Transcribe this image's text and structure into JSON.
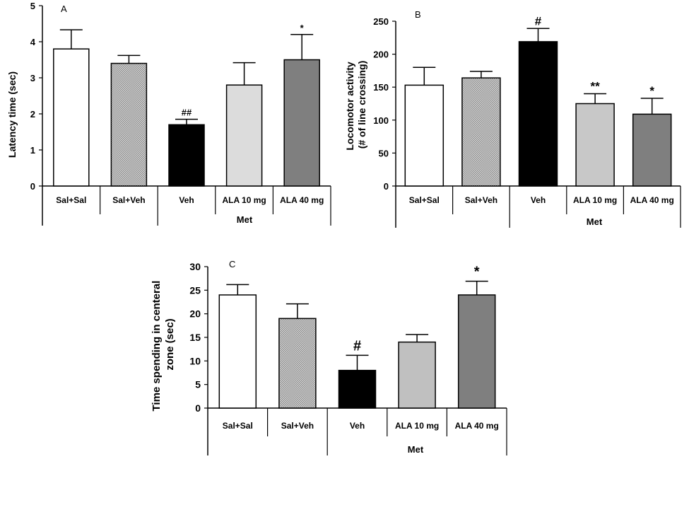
{
  "chart_data": [
    {
      "type": "bar",
      "panel_label": "A",
      "ylabel": "Latency time (sec)",
      "ylabel_lines": [
        "Latency time (sec)"
      ],
      "ylim": [
        0,
        5
      ],
      "yticks": [
        0,
        1,
        2,
        3,
        4,
        5
      ],
      "categories": [
        "Sal+Sal",
        "Sal+Veh",
        "Veh",
        "ALA 10 mg",
        "ALA 40 mg"
      ],
      "group_label": "Met",
      "values": [
        3.8,
        3.4,
        1.7,
        2.8,
        3.5
      ],
      "errors": [
        0.53,
        0.22,
        0.15,
        0.62,
        0.7
      ],
      "significance": [
        "",
        "",
        "##",
        "",
        "*"
      ],
      "bar_colors": [
        "#ffffff",
        "#a9a9a9",
        "#000000",
        "#dcdcdc",
        "#7f7f7f"
      ],
      "grid": false
    },
    {
      "type": "bar",
      "panel_label": "B",
      "ylabel": "Locomotor activity (# of line crossing)",
      "ylabel_lines": [
        "Locomotor activity",
        "(# of line crossing)"
      ],
      "ylim": [
        0,
        250
      ],
      "yticks": [
        0,
        50,
        100,
        150,
        200,
        250
      ],
      "categories": [
        "Sal+Sal",
        "Sal+Veh",
        "Veh",
        "ALA 10 mg",
        "ALA 40 mg"
      ],
      "group_label": "Met",
      "values": [
        153,
        164,
        219,
        125,
        109
      ],
      "errors": [
        27,
        10,
        20,
        15,
        24
      ],
      "significance": [
        "",
        "",
        "#",
        "**",
        "*"
      ],
      "bar_colors": [
        "#ffffff",
        "#a9a9a9",
        "#000000",
        "#c8c8c8",
        "#7f7f7f"
      ],
      "grid": false
    },
    {
      "type": "bar",
      "panel_label": "C",
      "ylabel": "Time spending in centeral zone (sec)",
      "ylabel_lines": [
        "Time spending in centeral",
        "zone (sec)"
      ],
      "ylim": [
        0,
        30
      ],
      "yticks": [
        0,
        5,
        10,
        15,
        20,
        25,
        30
      ],
      "categories": [
        "Sal+Sal",
        "Sal+Veh",
        "Veh",
        "ALA 10 mg",
        "ALA 40 mg"
      ],
      "group_label": "Met",
      "values": [
        24,
        19,
        8,
        14,
        24
      ],
      "errors": [
        2.2,
        3.1,
        3.2,
        1.6,
        2.9
      ],
      "significance": [
        "",
        "",
        "#",
        "",
        "*"
      ],
      "bar_colors": [
        "#ffffff",
        "#a9a9a9",
        "#000000",
        "#c0c0c0",
        "#7f7f7f"
      ],
      "grid": false
    }
  ]
}
